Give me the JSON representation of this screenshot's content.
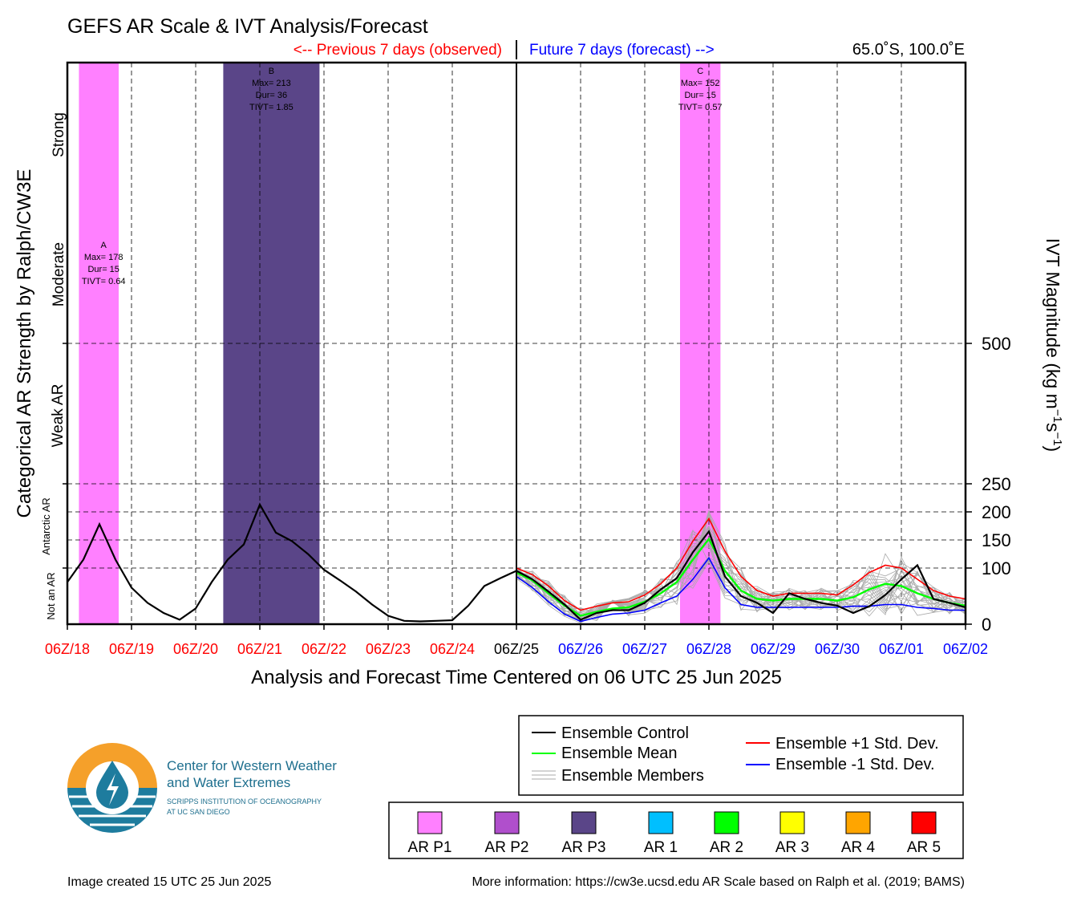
{
  "title": "GEFS AR Scale & IVT Analysis/Forecast",
  "header": {
    "previous_label": "<-- Previous 7 days (observed)",
    "future_label": "Future 7 days (forecast) -->",
    "location": "65.0˚S, 100.0˚E"
  },
  "colors": {
    "observed": "#ff0000",
    "forecast": "#0000ff",
    "ar_p1": "#ff80ff",
    "ar_p2": "#b04fcc",
    "ar_p3": "#5a4588",
    "ar1": "#00bfff",
    "ar2": "#00ff00",
    "ar3": "#ffff00",
    "ar4": "#ffa500",
    "ar5": "#ff0000",
    "control": "#000000",
    "mean": "#00ff00",
    "plus_sd": "#ff0000",
    "minus_sd": "#0000ff",
    "members": "#aaaaaa",
    "logo_orange": "#f5a02a",
    "logo_blue": "#1e7c9e"
  },
  "axes": {
    "left_label": "Categorical AR Strength by Ralph/CW3E",
    "right_label_main": "IVT Magnitude (kg m",
    "right_label_sup1": "−1",
    "right_label_mid": "s",
    "right_label_sup2": "−1",
    "right_label_end": ")",
    "x_label": "Analysis and Forecast Time Centered on 06 UTC 25 Jun 2025",
    "categories": [
      "Not an AR",
      "Antarctic AR",
      "Weak AR",
      "Moderate",
      "Strong"
    ]
  },
  "chart_data": {
    "type": "line",
    "x_ticks": [
      {
        "label": "06Z/18",
        "kind": "observed"
      },
      {
        "label": "06Z/19",
        "kind": "observed"
      },
      {
        "label": "06Z/20",
        "kind": "observed"
      },
      {
        "label": "06Z/21",
        "kind": "observed"
      },
      {
        "label": "06Z/22",
        "kind": "observed"
      },
      {
        "label": "06Z/23",
        "kind": "observed"
      },
      {
        "label": "06Z/24",
        "kind": "observed"
      },
      {
        "label": "06Z/25",
        "kind": "now"
      },
      {
        "label": "06Z/26",
        "kind": "forecast"
      },
      {
        "label": "06Z/27",
        "kind": "forecast"
      },
      {
        "label": "06Z/28",
        "kind": "forecast"
      },
      {
        "label": "06Z/29",
        "kind": "forecast"
      },
      {
        "label": "06Z/30",
        "kind": "forecast"
      },
      {
        "label": "06Z/01",
        "kind": "forecast"
      },
      {
        "label": "06Z/02",
        "kind": "forecast"
      }
    ],
    "xlim": [
      0,
      14
    ],
    "y_ticks": [
      0,
      100,
      150,
      200,
      250,
      500
    ],
    "y_tick_labels": [
      "0",
      "100",
      "150",
      "200",
      "250",
      "500"
    ],
    "ylim": [
      0,
      1000
    ],
    "y_dashed": [
      100,
      150,
      200,
      250,
      500
    ],
    "observed": {
      "x": [
        0,
        0.25,
        0.5,
        0.75,
        1,
        1.25,
        1.5,
        1.75,
        2,
        2.25,
        2.5,
        2.75,
        3,
        3.25,
        3.5,
        3.75,
        4,
        4.25,
        4.5,
        4.75,
        5,
        5.25,
        5.5,
        5.75,
        6,
        6.25,
        6.5,
        6.75,
        7
      ],
      "y": [
        75,
        115,
        178,
        115,
        65,
        38,
        20,
        8,
        28,
        75,
        115,
        142,
        213,
        163,
        148,
        125,
        97,
        78,
        58,
        35,
        15,
        6,
        5,
        6,
        7,
        33,
        68,
        82,
        95
      ]
    },
    "control": {
      "x": [
        7,
        7.25,
        7.5,
        7.75,
        8,
        8.25,
        8.5,
        8.75,
        9,
        9.25,
        9.5,
        9.75,
        10,
        10.25,
        10.5,
        10.75,
        11,
        11.25,
        11.5,
        11.75,
        12,
        12.25,
        12.5,
        12.75,
        13,
        13.25,
        13.5,
        13.75,
        14
      ],
      "y": [
        95,
        80,
        58,
        35,
        8,
        20,
        25,
        25,
        38,
        62,
        82,
        128,
        165,
        85,
        50,
        38,
        20,
        55,
        45,
        38,
        33,
        20,
        32,
        52,
        80,
        105,
        45,
        38,
        30
      ]
    },
    "mean": {
      "x": [
        7,
        7.25,
        7.5,
        7.75,
        8,
        8.25,
        8.5,
        8.75,
        9,
        9.25,
        9.5,
        9.75,
        10,
        10.25,
        10.5,
        10.75,
        11,
        11.25,
        11.5,
        11.75,
        12,
        12.25,
        12.5,
        12.75,
        13,
        13.25,
        13.5,
        13.75,
        14
      ],
      "y": [
        92,
        78,
        55,
        33,
        15,
        22,
        28,
        30,
        40,
        55,
        75,
        115,
        152,
        95,
        60,
        45,
        42,
        45,
        45,
        45,
        42,
        48,
        62,
        72,
        68,
        55,
        45,
        38,
        33
      ]
    },
    "plus_sd": {
      "x": [
        7,
        7.25,
        7.5,
        7.75,
        8,
        8.25,
        8.5,
        8.75,
        9,
        9.25,
        9.5,
        9.75,
        10,
        10.25,
        10.5,
        10.75,
        11,
        11.25,
        11.5,
        11.75,
        12,
        12.25,
        12.5,
        12.75,
        13,
        13.25,
        13.5,
        13.75,
        14
      ],
      "y": [
        100,
        88,
        68,
        42,
        25,
        32,
        38,
        40,
        52,
        72,
        100,
        148,
        188,
        130,
        85,
        60,
        50,
        55,
        55,
        55,
        52,
        70,
        92,
        105,
        100,
        80,
        60,
        50,
        45
      ]
    },
    "minus_sd": {
      "x": [
        7,
        7.25,
        7.5,
        7.75,
        8,
        8.25,
        8.5,
        8.75,
        9,
        9.25,
        9.5,
        9.75,
        10,
        10.25,
        10.5,
        10.75,
        11,
        11.25,
        11.5,
        11.75,
        12,
        12.25,
        12.5,
        12.75,
        13,
        13.25,
        13.5,
        13.75,
        14
      ],
      "y": [
        85,
        65,
        40,
        18,
        5,
        12,
        18,
        20,
        25,
        38,
        50,
        80,
        118,
        65,
        35,
        30,
        30,
        30,
        30,
        30,
        30,
        32,
        32,
        35,
        35,
        30,
        28,
        25,
        25
      ]
    },
    "ar_events": [
      {
        "x_start": 0.18,
        "x_end": 0.8,
        "category": "ar_p1",
        "label": "A",
        "max": "Max= 178",
        "dur": "Dur= 15",
        "tivt": "TIVT= 0.64",
        "label_y": 670
      },
      {
        "x_start": 2.43,
        "x_end": 3.93,
        "category": "ar_p3",
        "label": "B",
        "max": "Max= 213",
        "dur": "Dur= 36",
        "tivt": "TIVT= 1.85",
        "label_y": 980
      },
      {
        "x_start": 9.55,
        "x_end": 10.18,
        "category": "ar_p1",
        "label": "C",
        "max": "Max= 152",
        "dur": "Dur= 15",
        "tivt": "TIVT= 0.57",
        "label_y": 980
      }
    ]
  },
  "legend": {
    "control": "Ensemble Control",
    "mean": "Ensemble Mean",
    "members": "Ensemble Members",
    "plus_sd": "Ensemble +1 Std. Dev.",
    "minus_sd": "Ensemble -1 Std. Dev."
  },
  "scale_legend": [
    "AR P1",
    "AR P2",
    "AR P3",
    "AR 1",
    "AR 2",
    "AR 3",
    "AR 4",
    "AR 5"
  ],
  "logo": {
    "line1": "Center for Western Weather",
    "line2": "and Water Extremes",
    "line3": "SCRIPPS INSTITUTION OF OCEANOGRAPHY",
    "line4": "AT UC SAN DIEGO"
  },
  "footer": {
    "created": "Image created 15 UTC 25 Jun 2025",
    "info": "More information: https://cw3e.ucsd.edu AR Scale based on Ralph et al. (2019; BAMS)"
  }
}
